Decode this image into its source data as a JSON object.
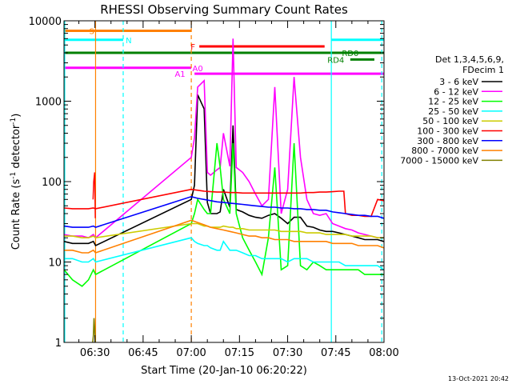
{
  "chart_data": {
    "type": "line",
    "title": "RHESSI Observing Summary Count Rates",
    "xlabel": "Start Time (20-Jan-10 06:20:22)",
    "ylabel_main": "Count Rate (s",
    "ylabel_sup1": "-1",
    "ylabel_mid": " detector",
    "ylabel_sup2": "-1",
    "ylabel_end": ")",
    "yscale": "log",
    "ylim": [
      1,
      10000
    ],
    "xlim": [
      380.37,
      480
    ],
    "x_unit": "minutes of day (06:20:22 = 380.37)",
    "yticks": [
      {
        "v": 1,
        "label": "1"
      },
      {
        "v": 10,
        "label": "10"
      },
      {
        "v": 100,
        "label": "100"
      },
      {
        "v": 1000,
        "label": "1000"
      },
      {
        "v": 10000,
        "label": "10000"
      }
    ],
    "xticks": [
      {
        "v": 390,
        "label": "06:30"
      },
      {
        "v": 405,
        "label": "06:45"
      },
      {
        "v": 420,
        "label": "07:00"
      },
      {
        "v": 435,
        "label": "07:15"
      },
      {
        "v": 450,
        "label": "07:30"
      },
      {
        "v": 465,
        "label": "07:45"
      },
      {
        "v": 480,
        "label": "08:00"
      }
    ],
    "legend": {
      "placement": "right",
      "header1": "Det 1,3,4,5,6,9,",
      "header2": "FDecim 1"
    },
    "series": [
      {
        "name": "3 - 6 keV",
        "color": "#000000",
        "x": [
          380.4,
          383,
          386,
          388,
          389.5,
          390.2,
          420,
          421,
          422,
          424,
          425,
          426,
          428,
          429,
          430,
          432,
          433,
          434,
          436,
          438,
          440,
          442,
          444,
          446,
          448,
          450,
          452,
          454,
          456,
          458,
          460,
          462,
          464,
          466,
          468,
          470,
          472,
          474,
          476,
          478,
          479.9
        ],
        "y": [
          18,
          17,
          17,
          17,
          18,
          16,
          60,
          90,
          1200,
          800,
          55,
          40,
          40,
          42,
          80,
          48,
          500,
          45,
          42,
          38,
          36,
          35,
          38,
          40,
          35,
          30,
          36,
          36,
          28,
          27,
          25,
          24,
          24,
          23,
          22,
          21,
          20,
          19,
          19,
          19,
          18
        ]
      },
      {
        "name": "6 - 12 keV",
        "color": "#ff00ff",
        "x": [
          380.4,
          383,
          386,
          388,
          389.5,
          390.2,
          420,
          421,
          422,
          424,
          425,
          426,
          428,
          429,
          430,
          432,
          433,
          434,
          436,
          438,
          440,
          442,
          444,
          446,
          448,
          450,
          452,
          454,
          456,
          458,
          460,
          462,
          464,
          466,
          468,
          470,
          472,
          474,
          476,
          478,
          479.9
        ],
        "y": [
          22,
          21,
          21,
          20,
          22,
          20,
          200,
          350,
          1500,
          1800,
          130,
          120,
          140,
          150,
          400,
          155,
          6000,
          150,
          130,
          100,
          70,
          50,
          60,
          1500,
          40,
          80,
          2000,
          200,
          60,
          40,
          38,
          40,
          30,
          28,
          26,
          25,
          23,
          22,
          21,
          20,
          20
        ]
      },
      {
        "name": "12 - 25 keV",
        "color": "#00ff00",
        "x": [
          380.4,
          383,
          386,
          388,
          389.5,
          390.2,
          420,
          421,
          422,
          424,
          425,
          426,
          428,
          429,
          430,
          432,
          433,
          434,
          436,
          438,
          440,
          442,
          444,
          446,
          448,
          450,
          452,
          454,
          456,
          458,
          460,
          462,
          464,
          466,
          468,
          470,
          472,
          474,
          476,
          478,
          479.9
        ],
        "y": [
          8,
          6,
          5,
          6,
          8,
          7,
          30,
          40,
          60,
          45,
          40,
          40,
          300,
          150,
          60,
          40,
          300,
          40,
          20,
          14,
          10,
          7,
          20,
          150,
          8,
          9,
          300,
          9,
          8,
          10,
          9,
          8,
          8,
          8,
          8,
          8,
          8,
          7,
          7,
          7,
          7
        ]
      },
      {
        "name": "25 - 50 keV",
        "color": "#00ffff",
        "x": [
          380.4,
          383,
          386,
          388,
          389.5,
          390.2,
          420,
          421,
          422,
          424,
          425,
          426,
          428,
          429,
          430,
          432,
          433,
          434,
          436,
          438,
          440,
          442,
          444,
          446,
          448,
          450,
          452,
          454,
          456,
          458,
          460,
          462,
          464,
          466,
          468,
          470,
          472,
          474,
          476,
          478,
          479.9
        ],
        "y": [
          11,
          11,
          10,
          10,
          11,
          10,
          20,
          18,
          17,
          16,
          16,
          15,
          14,
          14,
          18,
          14,
          14,
          14,
          13,
          12,
          12,
          11,
          11,
          11,
          11,
          10,
          11,
          11,
          11,
          10,
          10,
          10,
          10,
          10,
          9,
          9,
          9,
          9,
          9,
          9,
          8
        ]
      },
      {
        "name": "50 - 100 keV",
        "color": "#cccc00",
        "x": [
          380.4,
          383,
          386,
          388,
          389.5,
          390.2,
          420,
          421,
          422,
          424,
          425,
          426,
          428,
          429,
          430,
          432,
          433,
          434,
          436,
          438,
          440,
          442,
          444,
          446,
          448,
          450,
          452,
          454,
          456,
          458,
          460,
          462,
          464,
          466,
          468,
          470,
          472,
          474,
          476,
          478,
          479.9
        ],
        "y": [
          21,
          21,
          20,
          20,
          21,
          20,
          30,
          30,
          30,
          28,
          28,
          27,
          27,
          27,
          28,
          27,
          27,
          26,
          26,
          25,
          25,
          25,
          25,
          25,
          24,
          24,
          24,
          24,
          23,
          23,
          23,
          22,
          22,
          22,
          22,
          21,
          21,
          21,
          21,
          20,
          20
        ]
      },
      {
        "name": "100 - 300 keV",
        "color": "#ff0000",
        "x": [
          380.4,
          383,
          386,
          388,
          389.5,
          390.2,
          420,
          422,
          424,
          426,
          428,
          430,
          432,
          434,
          436,
          438,
          440,
          442,
          444,
          446,
          448,
          450,
          452,
          454,
          456,
          458,
          460,
          462,
          464,
          466,
          467.5,
          468,
          470,
          472,
          474,
          476,
          478,
          479.9
        ],
        "y": [
          47,
          46,
          46,
          46,
          47,
          46,
          80,
          78,
          76,
          75,
          74,
          74,
          73,
          73,
          72,
          72,
          72,
          72,
          72,
          72,
          72,
          72,
          72,
          72,
          73,
          73,
          74,
          74,
          75,
          76,
          76,
          40,
          38,
          38,
          37,
          37,
          60,
          58
        ]
      },
      {
        "name": "300 - 800 keV",
        "color": "#0000ff",
        "x": [
          380.4,
          383,
          386,
          388,
          389.5,
          390.2,
          420,
          422,
          424,
          426,
          428,
          430,
          432,
          434,
          436,
          438,
          440,
          442,
          444,
          446,
          448,
          450,
          452,
          454,
          456,
          458,
          460,
          462,
          464,
          466,
          468,
          470,
          472,
          474,
          476,
          478,
          479.9
        ],
        "y": [
          28,
          27,
          27,
          27,
          28,
          27,
          65,
          62,
          60,
          58,
          56,
          55,
          54,
          53,
          52,
          51,
          50,
          49,
          48,
          48,
          47,
          47,
          46,
          46,
          45,
          45,
          44,
          44,
          42,
          41,
          40,
          39,
          38,
          38,
          37,
          37,
          35
        ]
      },
      {
        "name": "800 - 7000 keV",
        "color": "#ff8000",
        "x": [
          380.4,
          383,
          386,
          388,
          389.5,
          390.2,
          420,
          422,
          424,
          426,
          428,
          430,
          432,
          434,
          436,
          438,
          440,
          442,
          444,
          446,
          448,
          450,
          452,
          454,
          456,
          458,
          460,
          462,
          464,
          466,
          468,
          470,
          472,
          474,
          476,
          478,
          479.9
        ],
        "y": [
          14,
          14,
          13,
          13,
          14,
          13,
          33,
          31,
          29,
          27,
          26,
          25,
          24,
          23,
          22,
          21,
          21,
          20,
          20,
          19,
          19,
          19,
          18,
          18,
          18,
          18,
          18,
          18,
          17,
          17,
          17,
          17,
          16,
          16,
          16,
          16,
          15
        ]
      },
      {
        "name": "7000 - 15000 keV",
        "color": "#808000",
        "x": [
          389.3,
          389.5,
          389.7,
          389.9,
          390.1
        ],
        "y": [
          1,
          1.2,
          2,
          1.5,
          1
        ]
      }
    ],
    "spike": {
      "x": [
        389.4,
        389.6,
        389.9,
        390.1
      ],
      "y": [
        60,
        100,
        130,
        35
      ]
    },
    "vlines": [
      {
        "x": 380.6,
        "color": "#00ffff",
        "style": "solid"
      },
      {
        "x": 390.2,
        "color": "#ff8000",
        "style": "solid"
      },
      {
        "x": 398.8,
        "color": "#00ffff",
        "style": "dashed"
      },
      {
        "x": 420.0,
        "color": "#ff8000",
        "style": "dashed"
      },
      {
        "x": 463.6,
        "color": "#00ffff",
        "style": "solid"
      },
      {
        "x": 479.3,
        "color": "#00ffff",
        "style": "dashed"
      }
    ],
    "flags": [
      {
        "label": "S",
        "color": "#ff8000",
        "x0": 380.4,
        "x1": 420.0,
        "y": 7500,
        "label_x": 389.0
      },
      {
        "label": "N",
        "color": "#00ffff",
        "x0": 380.4,
        "x1": 398.8,
        "y": 5800,
        "label_x": 400.5
      },
      {
        "label": "N",
        "color": "#00ffff",
        "x0": 463.6,
        "x1": 479.9,
        "y": 5800,
        "label_x": null
      },
      {
        "label": "F",
        "color": "#ff0000",
        "x0": 422.5,
        "x1": 461.5,
        "y": 4800,
        "label_x": 420.5
      },
      {
        "label": "RD0",
        "color": "#008000",
        "x0": 380.4,
        "x1": 479.9,
        "y": 4000,
        "label_x": 469.5
      },
      {
        "label": "RD4",
        "color": "#008000",
        "x0": 469.5,
        "x1": 477.0,
        "y": 3300,
        "label_x": 465.0
      },
      {
        "label": "A0",
        "color": "#ff00ff",
        "x0": 380.4,
        "x1": 420.0,
        "y": 2600,
        "label_x": 422.0
      },
      {
        "label": "A1",
        "color": "#ff00ff",
        "x0": 421.0,
        "x1": 479.9,
        "y": 2200,
        "label_x": 416.5
      }
    ]
  },
  "footer": {
    "date": "13-Oct-2021 20:42"
  }
}
